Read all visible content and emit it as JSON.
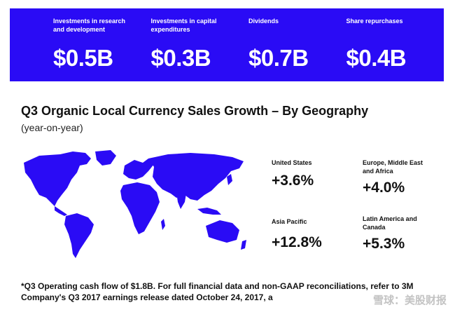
{
  "banner": {
    "metrics": [
      {
        "label": "Investments in research and development",
        "value": "$0.5B"
      },
      {
        "label": "Investments in capital expenditures",
        "value": "$0.3B"
      },
      {
        "label": "Dividends",
        "value": "$0.7B"
      },
      {
        "label": "Share repurchases",
        "value": "$0.4B"
      }
    ],
    "color": "#2a0bf5"
  },
  "section": {
    "title": "Q3 Organic Local Currency Sales Growth – By Geography",
    "subtitle": "(year-on-year)"
  },
  "map": {
    "icon": "world-map-icon",
    "color": "#2a0bf5"
  },
  "regions": [
    {
      "label": "United States",
      "value": "+3.6%"
    },
    {
      "label": "Europe, Middle East and Africa",
      "value": "+4.0%"
    },
    {
      "label": "Asia Pacific",
      "value": "+12.8%"
    },
    {
      "label": "Latin America and Canada",
      "value": "+5.3%"
    }
  ],
  "footnote": "*Q3 Operating cash flow of $1.8B. For full financial data and non-GAAP reconciliations, refer to 3M Company's Q3 2017 earnings release dated October 24, 2017, a",
  "watermark": "雪球：美股财报"
}
